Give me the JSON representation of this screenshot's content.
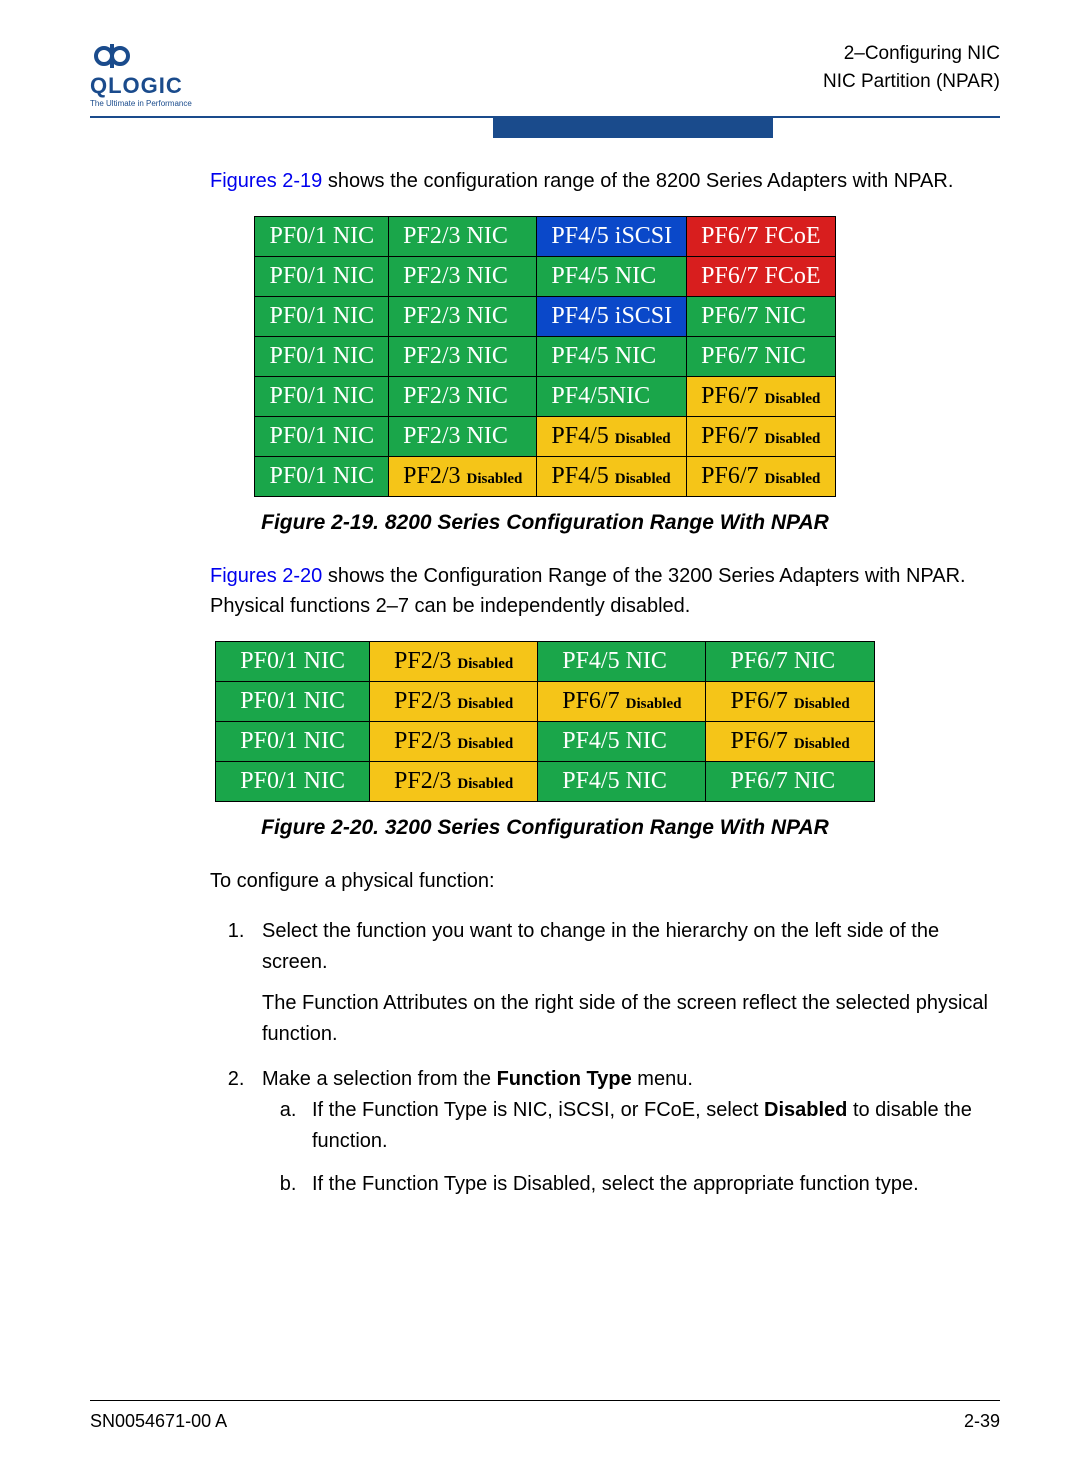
{
  "logo": {
    "name": "QLOGIC",
    "tagline": "The Ultimate in Performance"
  },
  "header": {
    "line1": "2–Configuring NIC",
    "line2": "NIC Partition (NPAR)"
  },
  "colors": {
    "nic": "#1aa64a",
    "iscsi": "#0a48c9",
    "fcoe": "#d81e1e",
    "disabled": "#f5c518",
    "brand": "#1a4b8c"
  },
  "para1": {
    "ref": "Figures 2-19",
    "rest": " shows the configuration range of the 8200 Series Adapters with NPAR."
  },
  "table1": {
    "caption": "Figure 2-19. 8200 Series Configuration Range With NPAR",
    "rows": [
      [
        {
          "t": "PF0/1 NIC",
          "c": "nic"
        },
        {
          "t": "PF2/3 NIC",
          "c": "nic"
        },
        {
          "t": "PF4/5 iSCSI",
          "c": "iscsi"
        },
        {
          "t": "PF6/7 FCoE",
          "c": "fcoe"
        }
      ],
      [
        {
          "t": "PF0/1 NIC",
          "c": "nic"
        },
        {
          "t": "PF2/3 NIC",
          "c": "nic"
        },
        {
          "t": "PF4/5 NIC",
          "c": "nic"
        },
        {
          "t": "PF6/7 FCoE",
          "c": "fcoe"
        }
      ],
      [
        {
          "t": "PF0/1 NIC",
          "c": "nic"
        },
        {
          "t": "PF2/3 NIC",
          "c": "nic"
        },
        {
          "t": "PF4/5 iSCSI",
          "c": "iscsi"
        },
        {
          "t": "PF6/7 NIC",
          "c": "nic"
        }
      ],
      [
        {
          "t": "PF0/1 NIC",
          "c": "nic"
        },
        {
          "t": "PF2/3 NIC",
          "c": "nic"
        },
        {
          "t": "PF4/5 NIC",
          "c": "nic"
        },
        {
          "t": "PF6/7 NIC",
          "c": "nic"
        }
      ],
      [
        {
          "t": "PF0/1 NIC",
          "c": "nic"
        },
        {
          "t": "PF2/3 NIC",
          "c": "nic"
        },
        {
          "t": "PF4/5NIC",
          "c": "nic"
        },
        {
          "t": "PF6/7",
          "s": "Disabled",
          "c": "dis"
        }
      ],
      [
        {
          "t": "PF0/1 NIC",
          "c": "nic"
        },
        {
          "t": "PF2/3 NIC",
          "c": "nic"
        },
        {
          "t": "PF4/5",
          "s": "Disabled",
          "c": "dis"
        },
        {
          "t": "PF6/7",
          "s": "Disabled",
          "c": "dis"
        }
      ],
      [
        {
          "t": "PF0/1 NIC",
          "c": "nic"
        },
        {
          "t": "PF2/3",
          "s": "Disabled",
          "c": "dis"
        },
        {
          "t": "PF4/5",
          "s": "Disabled",
          "c": "dis"
        },
        {
          "t": "PF6/7",
          "s": "Disabled",
          "c": "dis"
        }
      ]
    ]
  },
  "para2": {
    "ref": "Figures 2-20",
    "rest": " shows the Configuration Range of the 3200 Series Adapters with NPAR. Physical functions 2–7 can be independently disabled."
  },
  "table2": {
    "caption": "Figure 2-20. 3200 Series Configuration Range With NPAR",
    "rows": [
      [
        {
          "t": "PF0/1 NIC",
          "c": "nic"
        },
        {
          "t": "PF2/3",
          "s": "Disabled",
          "c": "dis"
        },
        {
          "t": "PF4/5 NIC",
          "c": "nic"
        },
        {
          "t": "PF6/7 NIC",
          "c": "nic"
        }
      ],
      [
        {
          "t": "PF0/1 NIC",
          "c": "nic"
        },
        {
          "t": "PF2/3",
          "s": "Disabled",
          "c": "dis"
        },
        {
          "t": "PF6/7",
          "s": "Disabled",
          "c": "dis"
        },
        {
          "t": "PF6/7",
          "s": "Disabled",
          "c": "dis"
        }
      ],
      [
        {
          "t": "PF0/1 NIC",
          "c": "nic"
        },
        {
          "t": "PF2/3",
          "s": "Disabled",
          "c": "dis"
        },
        {
          "t": "PF4/5 NIC",
          "c": "nic"
        },
        {
          "t": "PF6/7",
          "s": "Disabled",
          "c": "dis"
        }
      ],
      [
        {
          "t": "PF0/1 NIC",
          "c": "nic"
        },
        {
          "t": "PF2/3",
          "s": "Disabled",
          "c": "dis"
        },
        {
          "t": "PF4/5 NIC",
          "c": "nic"
        },
        {
          "t": "PF6/7 NIC",
          "c": "nic"
        }
      ]
    ]
  },
  "proc": {
    "intro": "To configure a physical function:",
    "step1": "Select the function you want to change in the hierarchy on the left side of the screen.",
    "step1b": "The Function Attributes on the right side of the screen reflect the selected physical function.",
    "step2_a": "Make a selection from the ",
    "step2_b": "Function Type",
    "step2_c": " menu.",
    "sub_a_1": "If the Function Type is NIC, iSCSI, or FCoE, select ",
    "sub_a_2": "Disabled",
    "sub_a_3": " to disable the function.",
    "sub_b": "If the Function Type is Disabled, select the appropriate function type."
  },
  "footer": {
    "left": "SN0054671-00  A",
    "right": "2-39"
  }
}
